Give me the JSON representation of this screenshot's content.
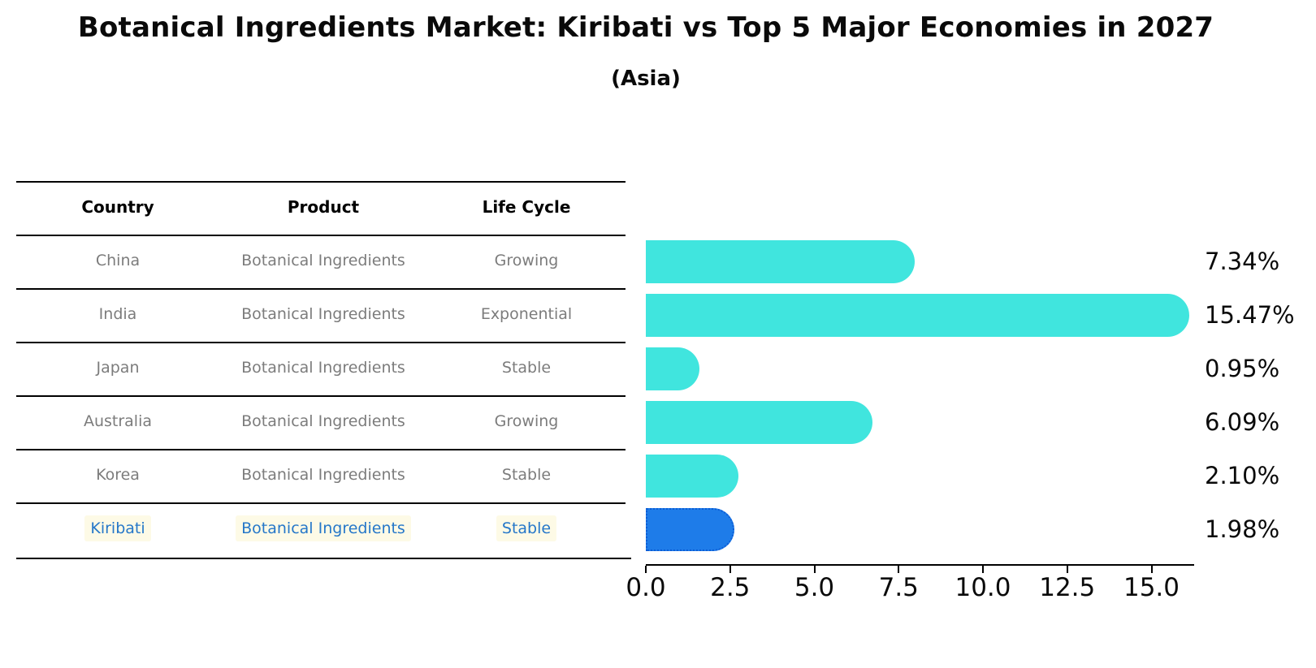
{
  "chart_data": {
    "type": "bar",
    "orientation": "horizontal",
    "title": "Botanical Ingredients Market: Kiribati vs Top 5 Major Economies in 2027",
    "subtitle": "(Asia)",
    "categories": [
      "China",
      "India",
      "Japan",
      "Australia",
      "Korea",
      "Kiribati"
    ],
    "values": [
      7.34,
      15.47,
      0.95,
      6.09,
      2.1,
      1.98
    ],
    "value_labels": [
      "7.34%",
      "15.47%",
      "0.95%",
      "6.09%",
      "2.10%",
      "1.98%"
    ],
    "x_ticks": [
      0.0,
      2.5,
      5.0,
      7.5,
      10.0,
      12.5,
      15.0
    ],
    "x_tick_labels": [
      "0.0",
      "2.5",
      "5.0",
      "7.5",
      "10.0",
      "12.5",
      "15.0"
    ],
    "xlim": [
      0,
      16.3
    ],
    "grid": false,
    "legend": false,
    "bar_color": "#40e5de",
    "highlight_bar_color": "#1e7ce9",
    "highlight_bar_edge_color": "#0c5dd6",
    "highlight_index": 5
  },
  "table": {
    "headers": [
      "Country",
      "Product",
      "Life Cycle"
    ],
    "rows": [
      {
        "country": "China",
        "product": "Botanical Ingredients",
        "life_cycle": "Growing",
        "highlight": false
      },
      {
        "country": "India",
        "product": "Botanical Ingredients",
        "life_cycle": "Exponential",
        "highlight": false
      },
      {
        "country": "Japan",
        "product": "Botanical Ingredients",
        "life_cycle": "Stable",
        "highlight": false
      },
      {
        "country": "Australia",
        "product": "Botanical Ingredients",
        "life_cycle": "Growing",
        "highlight": false
      },
      {
        "country": "Korea",
        "product": "Botanical Ingredients",
        "life_cycle": "Stable",
        "highlight": false
      },
      {
        "country": "Kiribati",
        "product": "Botanical Ingredients",
        "life_cycle": "Stable",
        "highlight": true
      }
    ],
    "highlight_text_color": "#2577c9"
  }
}
